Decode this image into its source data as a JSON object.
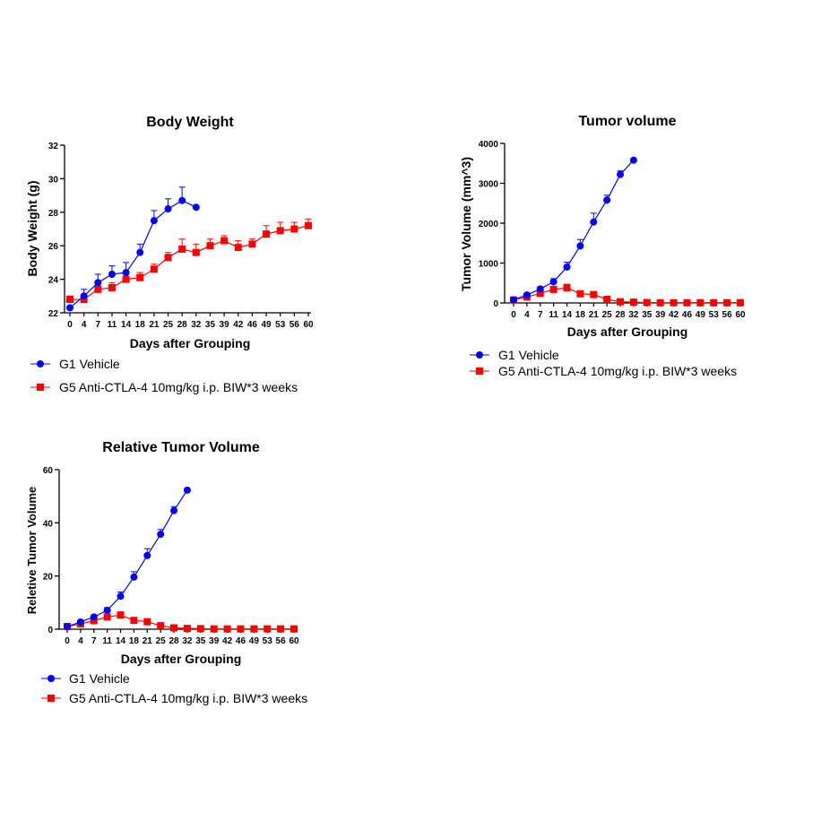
{
  "colors": {
    "vehicle": "#0000ff",
    "treatment": "#ff0000",
    "axis": "#000000"
  },
  "legend": {
    "g1": "G1 Vehicle",
    "g5": "G5 Anti-CTLA-4 10mg/kg i.p. BIW*3 weeks"
  },
  "chart_data": [
    {
      "type": "line",
      "title": "Body Weight",
      "xlabel": "Days after Grouping",
      "ylabel": "Body Weight (g)",
      "x_ticks": [
        "0",
        "4",
        "7",
        "11",
        "14",
        "18",
        "21",
        "25",
        "28",
        "32",
        "35",
        "39",
        "42",
        "46",
        "49",
        "53",
        "56",
        "60"
      ],
      "ylim": [
        22,
        32
      ],
      "y_ticks": [
        22,
        24,
        26,
        28,
        30,
        32
      ],
      "series": [
        {
          "name": "G1 Vehicle",
          "marker": "circle",
          "values": [
            22.3,
            23.0,
            23.8,
            24.3,
            24.4,
            25.6,
            27.5,
            28.2,
            28.7,
            28.3
          ],
          "errors": [
            0.0,
            0.4,
            0.5,
            0.5,
            0.6,
            0.5,
            0.6,
            0.6,
            0.8,
            0.0
          ]
        },
        {
          "name": "G5 Anti-CTLA-4 10mg/kg i.p. BIW*3 weeks",
          "marker": "square",
          "values": [
            22.8,
            22.8,
            23.4,
            23.5,
            24.0,
            24.1,
            24.6,
            25.3,
            25.8,
            25.6,
            26.0,
            26.3,
            25.9,
            26.1,
            26.7,
            26.9,
            27.0,
            27.2
          ],
          "errors": [
            0.2,
            0.2,
            0.2,
            0.3,
            0.3,
            0.3,
            0.3,
            0.3,
            0.6,
            0.5,
            0.4,
            0.3,
            0.4,
            0.3,
            0.5,
            0.5,
            0.4,
            0.4
          ]
        }
      ]
    },
    {
      "type": "line",
      "title": "Tumor volume",
      "xlabel": "Days after Grouping",
      "ylabel": "Tumor Volume (mm^3)",
      "x_ticks": [
        "0",
        "4",
        "7",
        "11",
        "14",
        "18",
        "21",
        "25",
        "28",
        "32",
        "35",
        "39",
        "42",
        "46",
        "49",
        "53",
        "56",
        "60"
      ],
      "ylim": [
        0,
        4000
      ],
      "y_ticks": [
        0,
        1000,
        2000,
        3000,
        4000
      ],
      "series": [
        {
          "name": "G1 Vehicle",
          "marker": "circle",
          "values": [
            80,
            200,
            350,
            530,
            900,
            1430,
            2030,
            2580,
            3220,
            3580
          ],
          "errors": [
            10,
            30,
            50,
            80,
            120,
            160,
            220,
            120,
            90,
            0
          ]
        },
        {
          "name": "G5 Anti-CTLA-4 10mg/kg i.p. BIW*3 weeks",
          "marker": "square",
          "values": [
            75,
            150,
            240,
            340,
            380,
            230,
            210,
            90,
            30,
            20,
            10,
            5,
            5,
            5,
            5,
            5,
            5,
            5
          ],
          "errors": [
            5,
            20,
            40,
            60,
            90,
            40,
            40,
            20,
            10,
            5,
            0,
            0,
            0,
            0,
            0,
            0,
            0,
            0
          ]
        }
      ]
    },
    {
      "type": "line",
      "title": "Relative Tumor Volume",
      "xlabel": "Days after Grouping",
      "ylabel": "Reletive Tumor Volume",
      "x_ticks": [
        "0",
        "4",
        "7",
        "11",
        "14",
        "18",
        "21",
        "25",
        "28",
        "32",
        "35",
        "39",
        "42",
        "46",
        "49",
        "53",
        "56",
        "60"
      ],
      "ylim": [
        0,
        60
      ],
      "y_ticks": [
        0,
        20,
        40,
        60
      ],
      "series": [
        {
          "name": "G1 Vehicle",
          "marker": "circle",
          "values": [
            1.0,
            2.7,
            4.6,
            7.1,
            12.4,
            19.6,
            27.7,
            35.7,
            44.6,
            52.3
          ],
          "errors": [
            0.0,
            0.4,
            0.7,
            1.0,
            1.6,
            2.0,
            2.6,
            1.8,
            1.5,
            0.0
          ]
        },
        {
          "name": "G5 Anti-CTLA-4 10mg/kg i.p. BIW*3 weeks",
          "marker": "square",
          "values": [
            1.0,
            2.0,
            3.2,
            4.6,
            5.3,
            3.3,
            2.8,
            1.3,
            0.5,
            0.3,
            0.2,
            0.1,
            0.1,
            0.1,
            0.1,
            0.1,
            0.1,
            0.1
          ],
          "errors": [
            0.0,
            0.3,
            0.6,
            0.9,
            1.2,
            0.6,
            0.6,
            0.3,
            0.2,
            0.1,
            0,
            0,
            0,
            0,
            0,
            0,
            0,
            0
          ]
        }
      ]
    }
  ]
}
